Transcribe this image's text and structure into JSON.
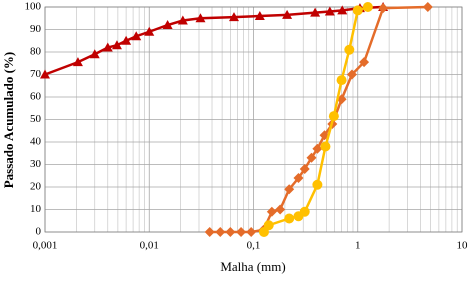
{
  "chart_data": {
    "type": "line",
    "log_x": true,
    "grid": true,
    "minor_grid": true,
    "xlabel": "Malha (mm)",
    "ylabel": "Passado Acumulado (%)",
    "xlim": [
      0.001,
      10
    ],
    "ylim": [
      0,
      100
    ],
    "xticks": [
      {
        "value": 0.001,
        "label": "0,001"
      },
      {
        "value": 0.01,
        "label": "0,01"
      },
      {
        "value": 0.1,
        "label": "0,1"
      },
      1,
      10
    ],
    "yticks": [
      0,
      10,
      20,
      30,
      40,
      50,
      60,
      70,
      80,
      90,
      100
    ],
    "series": [
      {
        "color": "#c00000",
        "marker": "triangle",
        "x": [
          0.001,
          0.00207,
          0.003,
          0.004,
          0.0049,
          0.006,
          0.0075,
          0.01,
          0.015,
          0.021,
          0.031,
          0.065,
          0.115,
          0.21,
          0.39,
          0.54,
          0.71,
          1.05,
          1.75
        ],
        "values": [
          70,
          75.5,
          79,
          82,
          83,
          85,
          87,
          89,
          92,
          94,
          95,
          95.5,
          96,
          96.5,
          97.5,
          98,
          98.5,
          99.5,
          100
        ]
      },
      {
        "color": "#e46c2a",
        "marker": "diamond",
        "x": [
          0.038,
          0.048,
          0.06,
          0.076,
          0.095,
          0.125,
          0.15,
          0.18,
          0.22,
          0.27,
          0.31,
          0.36,
          0.41,
          0.48,
          0.57,
          0.7,
          0.88,
          1.15,
          1.75,
          4.7
        ],
        "values": [
          0,
          0,
          0,
          0,
          0,
          1,
          9,
          10,
          19,
          24,
          28,
          33,
          37,
          43,
          48,
          59,
          70,
          75.5,
          99.5,
          100
        ]
      },
      {
        "color": "#ffc000",
        "marker": "circle",
        "x": [
          0.126,
          0.14,
          0.22,
          0.27,
          0.31,
          0.41,
          0.49,
          0.59,
          0.7,
          0.83,
          1.0,
          1.25
        ],
        "values": [
          0,
          3,
          6,
          7,
          9,
          21,
          38,
          51.5,
          67.5,
          81,
          98.5,
          100
        ]
      }
    ]
  }
}
